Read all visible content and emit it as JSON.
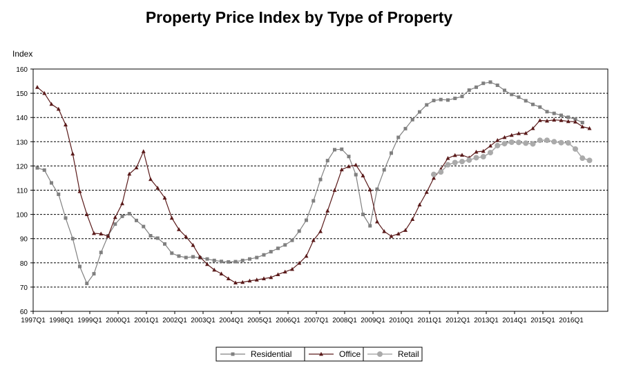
{
  "chart_data": {
    "type": "line",
    "title": "Property Price Index by Type of Property",
    "ylabel": "Index",
    "xlabel": "",
    "ylim": [
      60,
      160
    ],
    "yticks": [
      60,
      70,
      80,
      90,
      100,
      110,
      120,
      130,
      140,
      150,
      160
    ],
    "grid": "horizontal dashed",
    "legend_position": "bottom-center",
    "x_tick_labels": [
      "1997Q1",
      "1998Q1",
      "1999Q1",
      "2000Q1",
      "2001Q1",
      "2002Q1",
      "2003Q1",
      "2004Q1",
      "2005Q1",
      "2006Q1",
      "2007Q1",
      "2008Q1",
      "2009Q1",
      "2010Q1",
      "2011Q1",
      "2012Q1",
      "2013Q1",
      "2014Q1",
      "2015Q1",
      "2016Q1"
    ],
    "x_start": "1997Q1",
    "series": [
      {
        "name": "Residential",
        "color": "#808080",
        "marker": "square",
        "start_index": 0,
        "values": [
          119.2,
          118.3,
          113,
          108.3,
          98.5,
          90,
          78.5,
          71.5,
          75.5,
          84.3,
          91.2,
          96,
          99.2,
          100.3,
          97.5,
          95,
          91.2,
          90.2,
          87.8,
          84,
          82.8,
          82.2,
          82.5,
          82.1,
          81.6,
          81,
          80.6,
          80.4,
          80.5,
          81,
          81.6,
          82.2,
          83.3,
          84.6,
          86,
          87.4,
          89.3,
          93.1,
          97.6,
          105.6,
          114.4,
          122.2,
          126.7,
          126.9,
          123.9,
          116.4,
          100,
          95.3,
          110.4,
          118.4,
          125.3,
          131.8,
          135.4,
          139.1,
          142.3,
          145.2,
          147,
          147.4,
          147.2,
          147.9,
          148.7,
          151.3,
          152.5,
          154.1,
          154.6,
          153.3,
          151.2,
          149.5,
          148.4,
          146.9,
          145.4,
          144.3,
          142.4,
          141.7,
          140.9,
          140.1,
          139.3,
          137.9
        ]
      },
      {
        "name": "Office",
        "color": "#5a1a1a",
        "marker": "triangle",
        "start_index": 0,
        "values": [
          152.5,
          150,
          145.5,
          143.5,
          137,
          125,
          109.5,
          100,
          92.2,
          92,
          91,
          98.8,
          104.5,
          116.7,
          119.3,
          126,
          114.5,
          110.9,
          106.8,
          98.5,
          93.8,
          90.8,
          87.3,
          82.4,
          79.4,
          77.1,
          75.5,
          73.5,
          71.8,
          72,
          72.6,
          73,
          73.5,
          74,
          75.2,
          76.3,
          77.4,
          79.9,
          82.8,
          89.3,
          93,
          101.5,
          110,
          118.5,
          119.8,
          120.4,
          116,
          110.2,
          97,
          93,
          91,
          92,
          93.5,
          98,
          104,
          109.2,
          115,
          118.7,
          123.2,
          124.4,
          124.5,
          123.4,
          125.8,
          126.1,
          128.3,
          130.6,
          131.8,
          132.7,
          133.4,
          133.5,
          135.5,
          138.8,
          138.6,
          139,
          138.8,
          138.4,
          138.2,
          136.2,
          135.5
        ]
      },
      {
        "name": "Retail",
        "color": "#aaaaaa",
        "marker": "circle",
        "start_index": 56,
        "values": [
          116.5,
          117.5,
          120.5,
          121.4,
          121.8,
          122.4,
          123.4,
          123.8,
          125.5,
          128.4,
          129.2,
          129.8,
          129.7,
          129.4,
          129.1,
          130.6,
          130.6,
          130,
          129.6,
          129.5,
          127,
          123.2,
          122.3
        ]
      }
    ]
  }
}
